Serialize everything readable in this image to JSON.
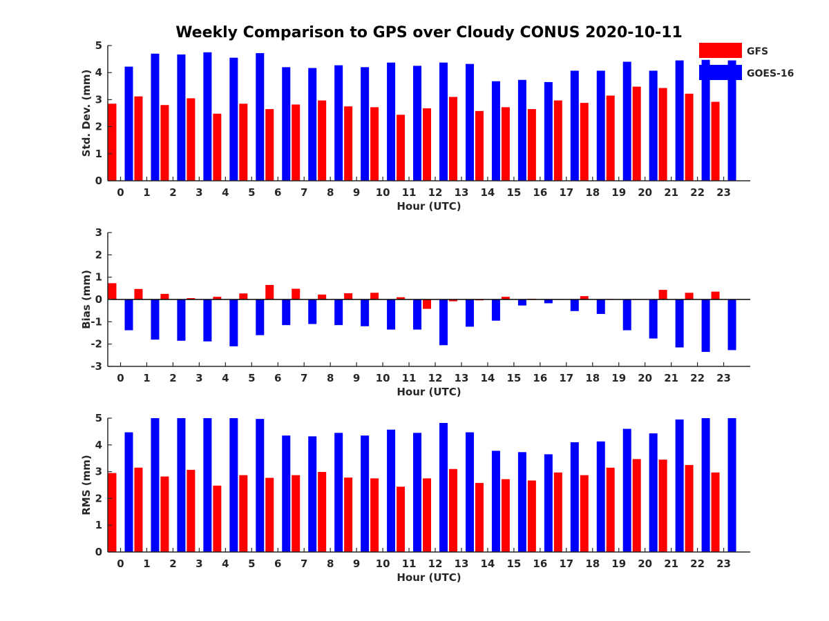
{
  "title": "Weekly Comparison to GPS over Cloudy CONUS 2020-10-11",
  "legend": [
    {
      "name": "GFS",
      "color": "#ff0000"
    },
    {
      "name": "GOES-16",
      "color": "#0000ff"
    }
  ],
  "chart_data": [
    {
      "type": "bar",
      "xlabel": "Hour (UTC)",
      "ylabel": "Std. Dev. (mm)",
      "ylim": [
        0,
        5
      ],
      "yticks": [
        0,
        1,
        2,
        3,
        4,
        5
      ],
      "categories": [
        "0",
        "1",
        "2",
        "3",
        "4",
        "5",
        "6",
        "7",
        "8",
        "9",
        "10",
        "11",
        "12",
        "13",
        "14",
        "15",
        "16",
        "17",
        "18",
        "19",
        "20",
        "21",
        "22",
        "23"
      ],
      "series": [
        {
          "name": "GFS",
          "color": "#ff0000",
          "values": [
            2.85,
            3.12,
            2.8,
            3.05,
            2.48,
            2.85,
            2.65,
            2.82,
            2.97,
            2.75,
            2.72,
            2.44,
            2.68,
            3.1,
            2.58,
            2.72,
            2.65,
            2.97,
            2.88,
            3.15,
            3.48,
            3.43,
            3.22,
            2.92
          ]
        },
        {
          "name": "GOES-16",
          "color": "#0000ff",
          "values": [
            4.22,
            4.7,
            4.67,
            4.75,
            4.55,
            4.72,
            4.2,
            4.17,
            4.27,
            4.2,
            4.37,
            4.25,
            4.37,
            4.32,
            3.68,
            3.73,
            3.65,
            4.07,
            4.07,
            4.4,
            4.07,
            4.45,
            4.47,
            4.45
          ]
        }
      ]
    },
    {
      "type": "bar",
      "xlabel": "Hour (UTC)",
      "ylabel": "Bias (mm)",
      "ylim": [
        -3,
        3
      ],
      "yticks": [
        -3,
        -2,
        -1,
        0,
        1,
        2,
        3
      ],
      "categories": [
        "0",
        "1",
        "2",
        "3",
        "4",
        "5",
        "6",
        "7",
        "8",
        "9",
        "10",
        "11",
        "12",
        "13",
        "14",
        "15",
        "16",
        "17",
        "18",
        "19",
        "20",
        "21",
        "22",
        "23"
      ],
      "series": [
        {
          "name": "GFS",
          "color": "#ff0000",
          "values": [
            0.73,
            0.47,
            0.25,
            0.06,
            0.12,
            0.27,
            0.65,
            0.48,
            0.22,
            0.28,
            0.3,
            0.1,
            -0.42,
            -0.08,
            -0.04,
            0.12,
            0.03,
            0.02,
            0.15,
            0.02,
            0.0,
            0.43,
            0.3,
            0.35
          ]
        },
        {
          "name": "GOES-16",
          "color": "#0000ff",
          "values": [
            -1.38,
            -1.8,
            -1.85,
            -1.88,
            -2.1,
            -1.6,
            -1.15,
            -1.1,
            -1.15,
            -1.2,
            -1.35,
            -1.35,
            -2.05,
            -1.22,
            -0.95,
            -0.27,
            -0.17,
            -0.52,
            -0.65,
            -1.38,
            -1.75,
            -2.15,
            -2.35,
            -2.27
          ]
        }
      ]
    },
    {
      "type": "bar",
      "xlabel": "Hour (UTC)",
      "ylabel": "RMS (mm)",
      "ylim": [
        0,
        5
      ],
      "yticks": [
        0,
        1,
        2,
        3,
        4,
        5
      ],
      "categories": [
        "0",
        "1",
        "2",
        "3",
        "4",
        "5",
        "6",
        "7",
        "8",
        "9",
        "10",
        "11",
        "12",
        "13",
        "14",
        "15",
        "16",
        "17",
        "18",
        "19",
        "20",
        "21",
        "22",
        "23"
      ],
      "series": [
        {
          "name": "GFS",
          "color": "#ff0000",
          "values": [
            2.95,
            3.15,
            2.82,
            3.07,
            2.48,
            2.87,
            2.77,
            2.87,
            2.99,
            2.78,
            2.75,
            2.44,
            2.75,
            3.1,
            2.58,
            2.72,
            2.67,
            2.97,
            2.87,
            3.15,
            3.47,
            3.45,
            3.25,
            2.97
          ]
        },
        {
          "name": "GOES-16",
          "color": "#0000ff",
          "values": [
            4.47,
            5.0,
            5.0,
            5.0,
            5.0,
            4.97,
            4.35,
            4.32,
            4.45,
            4.35,
            4.57,
            4.45,
            4.82,
            4.47,
            3.78,
            3.73,
            3.65,
            4.1,
            4.13,
            4.6,
            4.43,
            4.95,
            5.0,
            5.0
          ]
        }
      ]
    }
  ]
}
